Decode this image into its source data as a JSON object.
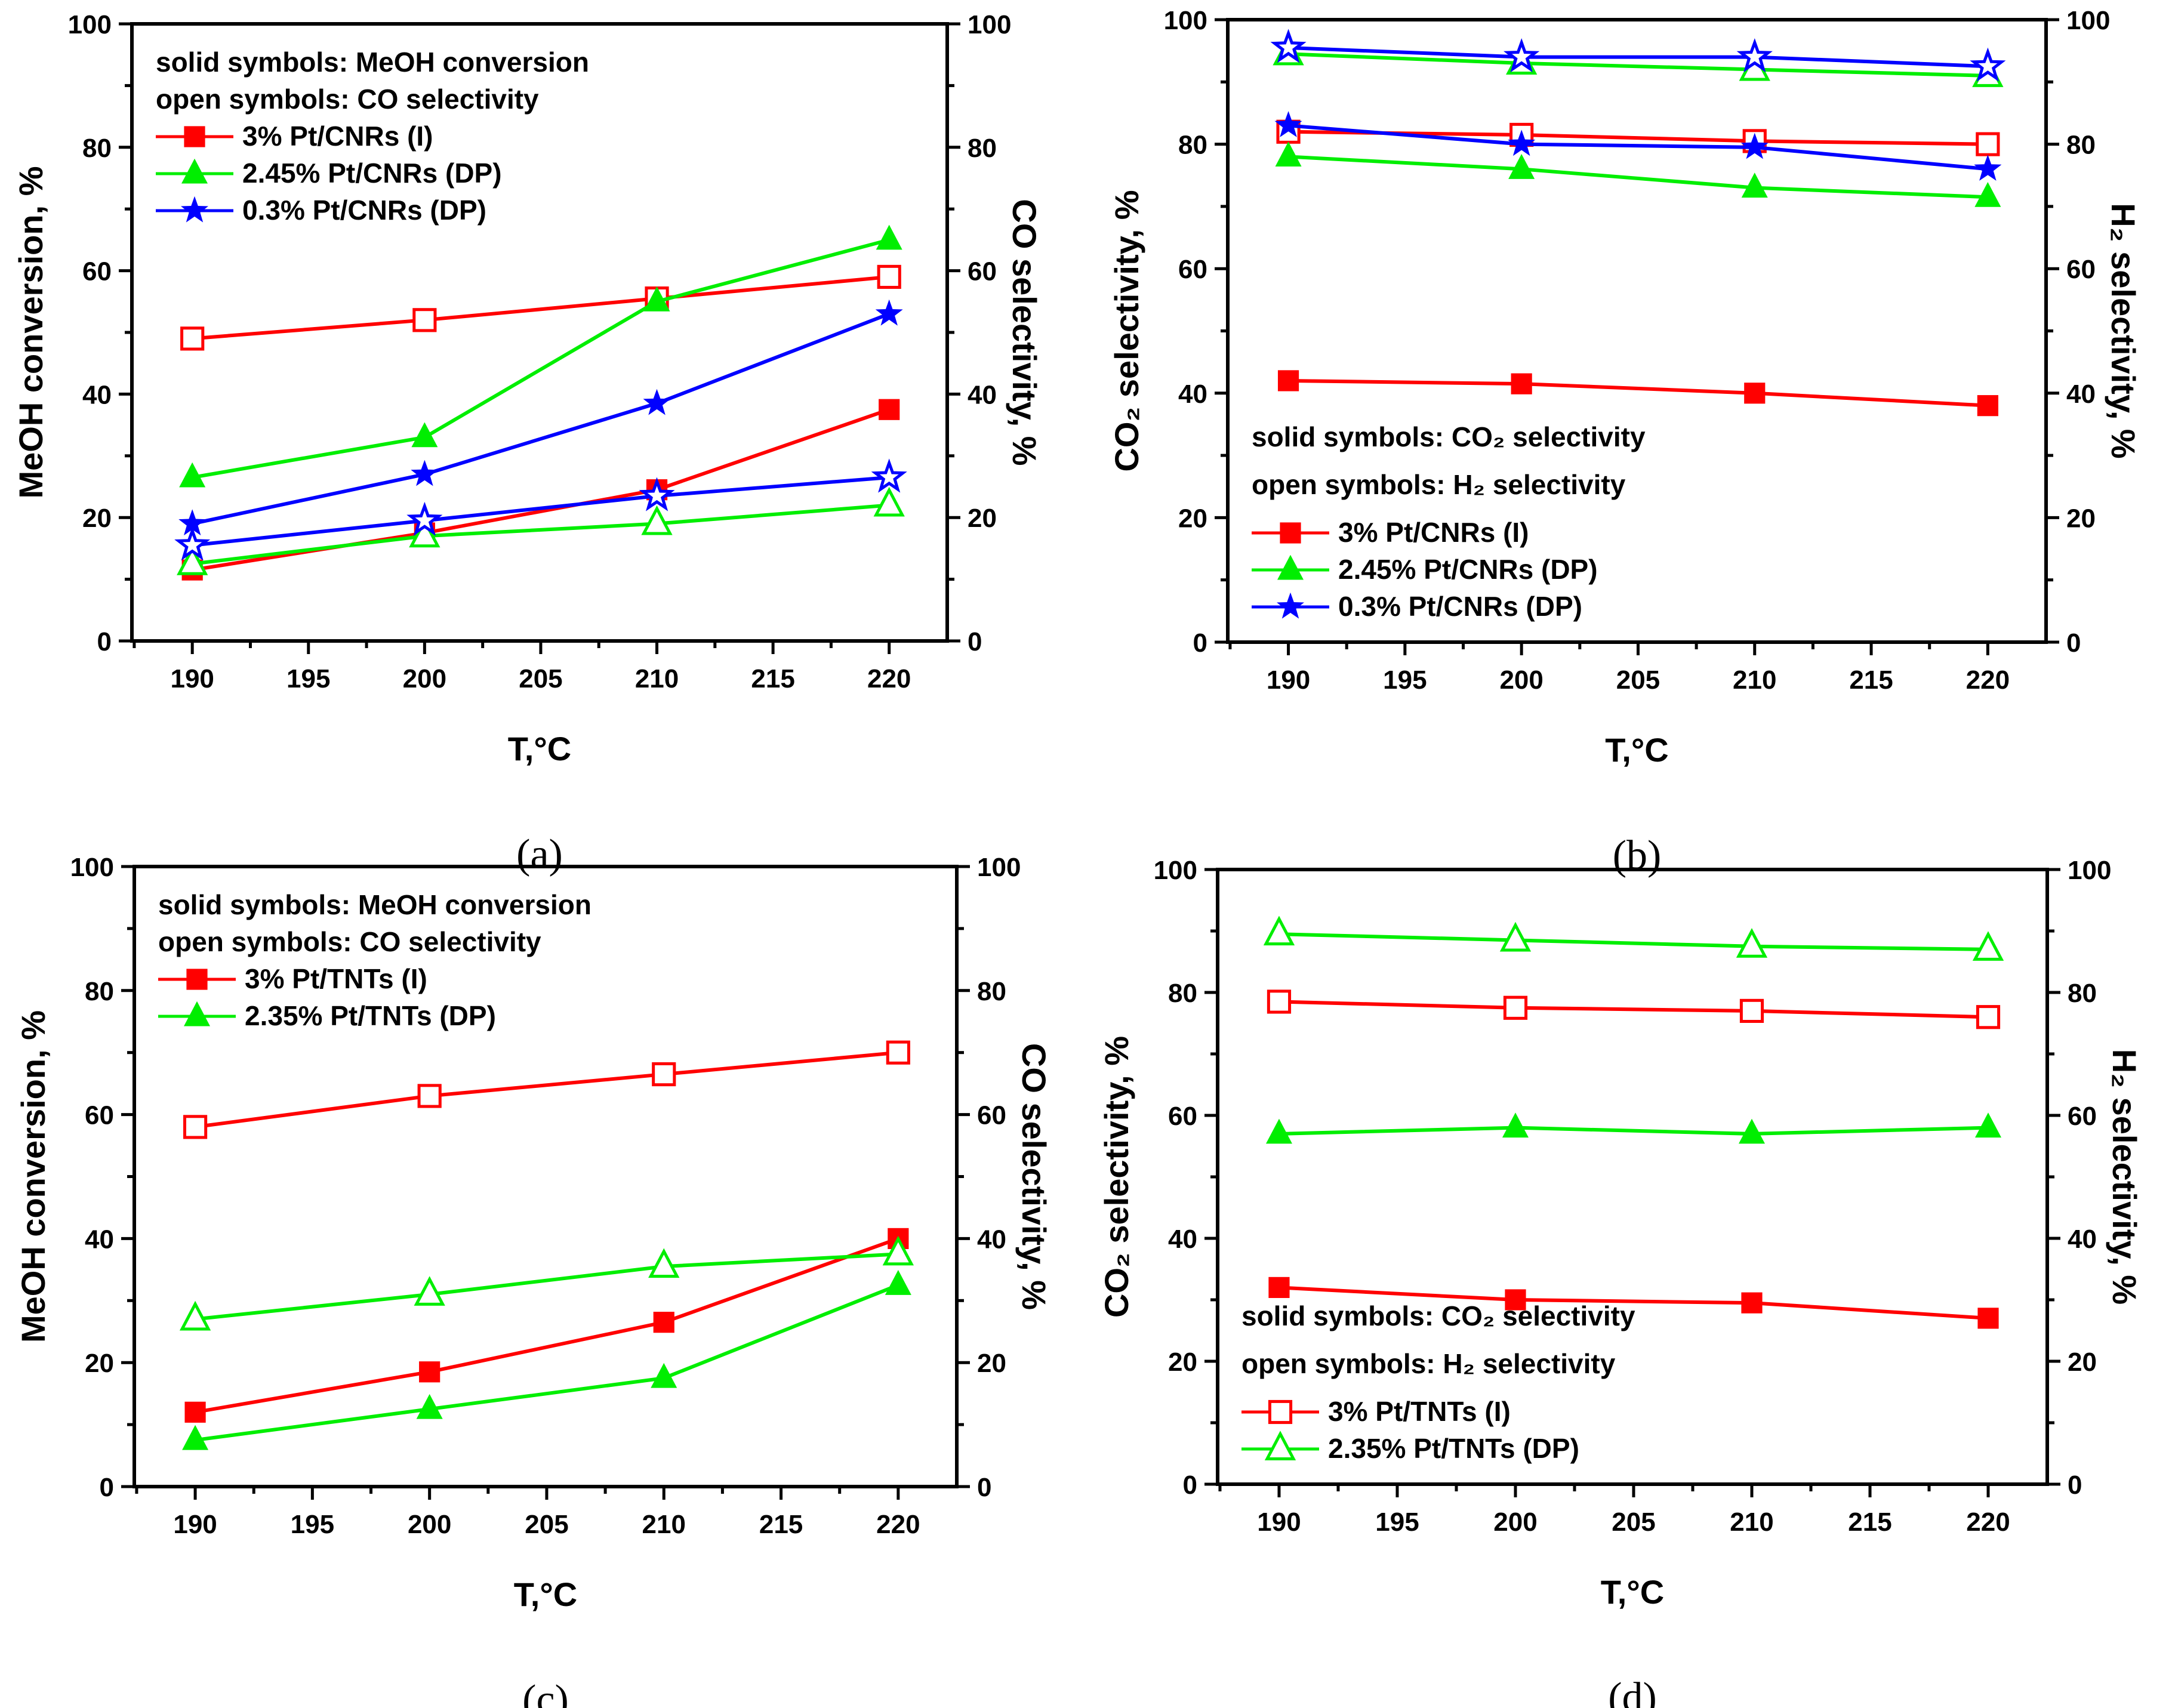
{
  "colors": {
    "red": "#ff0000",
    "green": "#00ee00",
    "blue": "#0000ff"
  },
  "chart_data": [
    {
      "type": "line",
      "caption": "(a)",
      "xlabel": "T,°C",
      "ylabel": "MeOH conversion, %",
      "y2label": "CO selectivity, %",
      "xlim": [
        187.4,
        222.5
      ],
      "ylim": [
        0,
        100
      ],
      "y2lim": [
        0,
        100
      ],
      "xticks": [
        190,
        195,
        200,
        205,
        210,
        215,
        220
      ],
      "yticks": [
        0,
        20,
        40,
        60,
        80,
        100
      ],
      "x": [
        190,
        200,
        210,
        220
      ],
      "legend_position": "top-left",
      "legend_notes": [
        "solid symbols: MeOH conversion",
        "open symbols: CO selectivity"
      ],
      "legend_marker_fill": "solid",
      "catalysts": [
        {
          "name": "3% Pt/CNRs (I)",
          "color": "red",
          "marker": "square"
        },
        {
          "name": "2.45% Pt/CNRs (DP)",
          "color": "green",
          "marker": "triangle"
        },
        {
          "name": "0.3% Pt/CNRs (DP)",
          "color": "blue",
          "marker": "star"
        }
      ],
      "series": [
        {
          "catalyst": 0,
          "fill": "solid",
          "quantity": "MeOH conversion",
          "values": [
            11.5,
            17.5,
            24.5,
            37.5
          ]
        },
        {
          "catalyst": 0,
          "fill": "open",
          "quantity": "CO selectivity",
          "values": [
            49,
            52,
            55.5,
            59
          ]
        },
        {
          "catalyst": 1,
          "fill": "solid",
          "quantity": "MeOH conversion",
          "values": [
            26.5,
            33,
            55,
            65
          ]
        },
        {
          "catalyst": 1,
          "fill": "open",
          "quantity": "CO selectivity",
          "values": [
            12.5,
            17,
            19,
            22
          ]
        },
        {
          "catalyst": 2,
          "fill": "solid",
          "quantity": "MeOH conversion",
          "values": [
            19,
            27,
            38.5,
            53
          ]
        },
        {
          "catalyst": 2,
          "fill": "open",
          "quantity": "CO selectivity",
          "values": [
            15.5,
            19.5,
            23.5,
            26.5
          ]
        }
      ]
    },
    {
      "type": "line",
      "caption": "(b)",
      "xlabel": "T,°C",
      "ylabel": "CO₂ selectivity, %",
      "y2label": "H₂ selectivity, %",
      "xlim": [
        187.4,
        222.5
      ],
      "ylim": [
        0,
        100
      ],
      "y2lim": [
        0,
        100
      ],
      "xticks": [
        190,
        195,
        200,
        205,
        210,
        215,
        220
      ],
      "yticks": [
        0,
        20,
        40,
        60,
        80,
        100
      ],
      "x": [
        190,
        200,
        210,
        220
      ],
      "legend_position": "bottom-left",
      "legend_notes": [
        "solid symbols: CO₂ selectivity",
        "open symbols: H₂ selectivity"
      ],
      "legend_marker_fill": "solid",
      "catalysts": [
        {
          "name": "3% Pt/CNRs (I)",
          "color": "red",
          "marker": "square"
        },
        {
          "name": "2.45% Pt/CNRs (DP)",
          "color": "green",
          "marker": "triangle"
        },
        {
          "name": "0.3% Pt/CNRs (DP)",
          "color": "blue",
          "marker": "star"
        }
      ],
      "series": [
        {
          "catalyst": 0,
          "fill": "solid",
          "quantity": "CO2 selectivity",
          "values": [
            42,
            41.5,
            40,
            38
          ]
        },
        {
          "catalyst": 0,
          "fill": "open",
          "quantity": "H2 selectivity",
          "values": [
            82,
            81.5,
            80.5,
            80
          ]
        },
        {
          "catalyst": 1,
          "fill": "solid",
          "quantity": "CO2 selectivity",
          "values": [
            78,
            76,
            73,
            71.5
          ]
        },
        {
          "catalyst": 1,
          "fill": "open",
          "quantity": "H2 selectivity",
          "values": [
            94.5,
            93,
            92,
            91
          ]
        },
        {
          "catalyst": 2,
          "fill": "solid",
          "quantity": "CO2 selectivity",
          "values": [
            83,
            80,
            79.5,
            76
          ]
        },
        {
          "catalyst": 2,
          "fill": "open",
          "quantity": "H2 selectivity",
          "values": [
            95.5,
            94,
            94,
            92.5
          ]
        }
      ]
    },
    {
      "type": "line",
      "caption": "(c)",
      "xlabel": "T,°C",
      "ylabel": "MeOH conversion, %",
      "y2label": "CO selectivity, %",
      "xlim": [
        187.4,
        222.5
      ],
      "ylim": [
        0,
        100
      ],
      "y2lim": [
        0,
        100
      ],
      "xticks": [
        190,
        195,
        200,
        205,
        210,
        215,
        220
      ],
      "yticks": [
        0,
        20,
        40,
        60,
        80,
        100
      ],
      "x": [
        190,
        200,
        210,
        220
      ],
      "legend_position": "top-left",
      "legend_notes": [
        "solid symbols: MeOH conversion",
        "open symbols: CO selectivity"
      ],
      "legend_marker_fill": "solid",
      "catalysts": [
        {
          "name": "3% Pt/TNTs (I)",
          "color": "red",
          "marker": "square"
        },
        {
          "name": "2.35% Pt/TNTs (DP)",
          "color": "green",
          "marker": "triangle"
        }
      ],
      "series": [
        {
          "catalyst": 0,
          "fill": "solid",
          "quantity": "MeOH conversion",
          "values": [
            12,
            18.5,
            26.5,
            40
          ]
        },
        {
          "catalyst": 0,
          "fill": "open",
          "quantity": "CO selectivity",
          "values": [
            58,
            63,
            66.5,
            70
          ]
        },
        {
          "catalyst": 1,
          "fill": "solid",
          "quantity": "MeOH conversion",
          "values": [
            7.5,
            12.5,
            17.5,
            32.5
          ]
        },
        {
          "catalyst": 1,
          "fill": "open",
          "quantity": "CO selectivity",
          "values": [
            27,
            31,
            35.5,
            37.5
          ]
        }
      ]
    },
    {
      "type": "line",
      "caption": "(d)",
      "xlabel": "T,°C",
      "ylabel": "CO₂ selectivity, %",
      "y2label": "H₂ selectivity, %",
      "xlim": [
        187.4,
        222.5
      ],
      "ylim": [
        0,
        100
      ],
      "y2lim": [
        0,
        100
      ],
      "xticks": [
        190,
        195,
        200,
        205,
        210,
        215,
        220
      ],
      "yticks": [
        0,
        20,
        40,
        60,
        80,
        100
      ],
      "x": [
        190,
        200,
        210,
        220
      ],
      "legend_position": "bottom-left",
      "legend_notes": [
        "solid symbols: CO₂ selectivity",
        "open symbols: H₂ selectivity"
      ],
      "legend_marker_fill": "open",
      "catalysts": [
        {
          "name": "3% Pt/TNTs (I)",
          "color": "red",
          "marker": "square"
        },
        {
          "name": "2.35% Pt/TNTs (DP)",
          "color": "green",
          "marker": "triangle"
        }
      ],
      "series": [
        {
          "catalyst": 0,
          "fill": "solid",
          "quantity": "CO2 selectivity",
          "values": [
            32,
            30,
            29.5,
            27
          ]
        },
        {
          "catalyst": 0,
          "fill": "open",
          "quantity": "H2 selectivity",
          "values": [
            78.5,
            77.5,
            77,
            76
          ]
        },
        {
          "catalyst": 1,
          "fill": "solid",
          "quantity": "CO2 selectivity",
          "values": [
            57,
            58,
            57,
            58
          ]
        },
        {
          "catalyst": 1,
          "fill": "open",
          "quantity": "H2 selectivity",
          "values": [
            89.5,
            88.5,
            87.5,
            87
          ]
        }
      ]
    }
  ]
}
